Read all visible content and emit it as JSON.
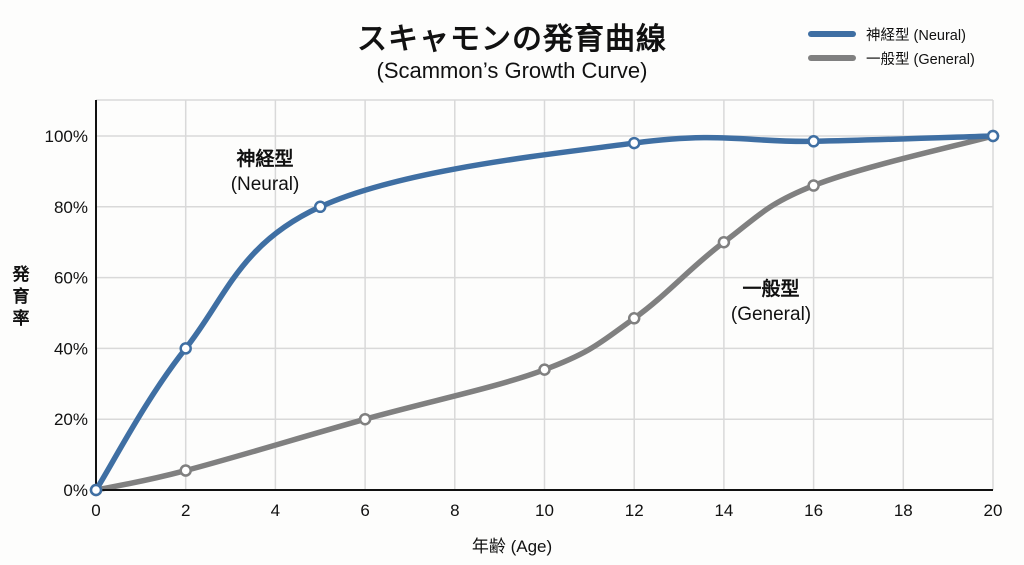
{
  "header": {
    "title": "スキャモンの発育曲線",
    "subtitle": "(Scammon’s Growth Curve)"
  },
  "legend": {
    "items": [
      {
        "label": "神経型 (Neural)",
        "color": "#3f6fa3"
      },
      {
        "label": "一般型 (General)",
        "color": "#808080"
      }
    ]
  },
  "axes": {
    "ylabel": "発育率",
    "xlabel": "年齢 (Age)",
    "yticks": [
      "0%",
      "20%",
      "40%",
      "60%",
      "80%",
      "100%"
    ],
    "xticks": [
      "0",
      "2",
      "4",
      "6",
      "8",
      "10",
      "12",
      "14",
      "16",
      "18",
      "20"
    ]
  },
  "annotations": {
    "neural": {
      "line1": "神経型",
      "line2": "(Neural)"
    },
    "general": {
      "line1": "一般型",
      "line2": "(General)"
    }
  },
  "chart_data": {
    "type": "line",
    "title": "スキャモンの発育曲線",
    "subtitle": "(Scammon’s Growth Curve)",
    "xlabel": "年齢 (Age)",
    "ylabel": "発育率",
    "xlim": [
      0,
      20
    ],
    "ylim": [
      0,
      110
    ],
    "xticks": [
      0,
      2,
      4,
      6,
      8,
      10,
      12,
      14,
      16,
      18,
      20
    ],
    "yticks": [
      0,
      20,
      40,
      60,
      80,
      100
    ],
    "grid": true,
    "legend_position": "top-right",
    "series": [
      {
        "name": "神経型 (Neural)",
        "color": "#3f6fa3",
        "x": [
          0,
          2,
          5,
          12,
          16,
          20
        ],
        "y": [
          0,
          40,
          80,
          98,
          98.5,
          100
        ]
      },
      {
        "name": "一般型 (General)",
        "color": "#808080",
        "x": [
          0,
          2,
          6,
          10,
          12,
          14,
          16,
          20
        ],
        "y": [
          0,
          5.5,
          20,
          34,
          48.5,
          70,
          86,
          100
        ]
      }
    ],
    "annotations": [
      {
        "text": "神経型 (Neural)",
        "x": 4.8,
        "y": 90
      },
      {
        "text": "一般型 (General)",
        "x": 15,
        "y": 55
      }
    ]
  }
}
